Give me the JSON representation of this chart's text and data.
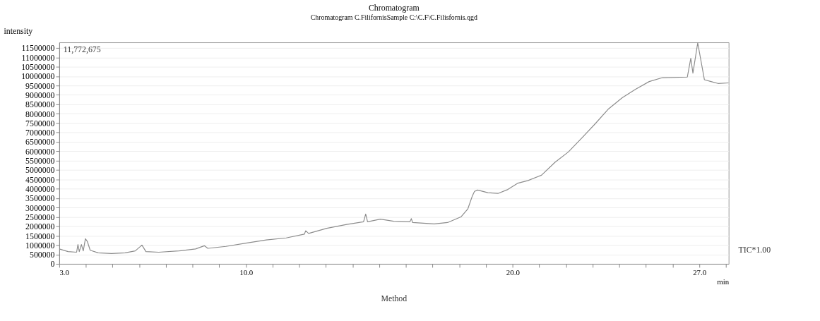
{
  "chart_data": {
    "type": "line",
    "title": "Chromatogram",
    "subtitle": "Chromatogram C.FilifornisSample  C:\\C.F\\C.Filisfornis.qgd",
    "xlabel": "min",
    "ylabel": "intensity",
    "annotations": [
      "11,772,675",
      "TIC*1.00",
      "Method"
    ],
    "xlim": [
      3.0,
      28.1
    ],
    "xticks": [
      {
        "value": 3,
        "label": "3.0"
      },
      {
        "value": 4,
        "label": null
      },
      {
        "value": 5,
        "label": null
      },
      {
        "value": 6,
        "label": null
      },
      {
        "value": 7,
        "label": null
      },
      {
        "value": 8,
        "label": null
      },
      {
        "value": 9,
        "label": null
      },
      {
        "value": 10,
        "label": "10.0"
      },
      {
        "value": 11,
        "label": null
      },
      {
        "value": 12,
        "label": null
      },
      {
        "value": 13,
        "label": null
      },
      {
        "value": 14,
        "label": null
      },
      {
        "value": 15,
        "label": null
      },
      {
        "value": 16,
        "label": null
      },
      {
        "value": 17,
        "label": null
      },
      {
        "value": 18,
        "label": null
      },
      {
        "value": 19,
        "label": null
      },
      {
        "value": 20,
        "label": "20.0"
      },
      {
        "value": 21,
        "label": null
      },
      {
        "value": 22,
        "label": null
      },
      {
        "value": 23,
        "label": null
      },
      {
        "value": 24,
        "label": null
      },
      {
        "value": 25,
        "label": null
      },
      {
        "value": 26,
        "label": null
      },
      {
        "value": 27,
        "label": "27.0"
      },
      {
        "value": 28,
        "label": null
      }
    ],
    "ylim": [
      0,
      11800000
    ],
    "yticks": [
      0,
      500000,
      1000000,
      1500000,
      2000000,
      2500000,
      3000000,
      3500000,
      4000000,
      4500000,
      5000000,
      5500000,
      6000000,
      6500000,
      7000000,
      7500000,
      8000000,
      8500000,
      9000000,
      9500000,
      10000000,
      10500000,
      11000000,
      11500000
    ],
    "grid": "y",
    "marker": "none",
    "line_style": "solid",
    "series": [
      {
        "color": "#8c8c8c",
        "x": [
          3.0,
          3.33,
          3.65,
          3.7,
          3.75,
          3.83,
          3.9,
          3.98,
          4.05,
          4.16,
          4.46,
          4.96,
          5.47,
          5.85,
          6.1,
          6.25,
          6.73,
          7.48,
          8.11,
          8.44,
          8.57,
          9.25,
          10.0,
          10.76,
          11.51,
          12.19,
          12.24,
          12.35,
          13.03,
          13.78,
          14.41,
          14.49,
          14.56,
          15.04,
          15.54,
          16.15,
          16.2,
          16.25,
          17.06,
          17.56,
          18.07,
          18.32,
          18.49,
          18.57,
          18.69,
          19.07,
          19.45,
          19.82,
          20.2,
          20.58,
          21.08,
          21.59,
          22.09,
          22.6,
          23.1,
          23.6,
          24.11,
          24.61,
          25.12,
          25.62,
          26.55,
          26.68,
          26.76,
          26.94,
          27.19,
          27.44,
          27.7,
          28.1
        ],
        "values": [
          792000,
          654000,
          620000,
          1030000,
          650000,
          1030000,
          690000,
          1340000,
          1200000,
          723000,
          585000,
          551000,
          585000,
          689000,
          998000,
          654000,
          620000,
          689000,
          792000,
          964000,
          826000,
          930000,
          1100000,
          1270000,
          1380000,
          1580000,
          1760000,
          1620000,
          1890000,
          2100000,
          2240000,
          2650000,
          2240000,
          2380000,
          2270000,
          2240000,
          2410000,
          2200000,
          2130000,
          2200000,
          2510000,
          2930000,
          3620000,
          3860000,
          3930000,
          3790000,
          3750000,
          3960000,
          4300000,
          4440000,
          4720000,
          5410000,
          5960000,
          6710000,
          7470000,
          8260000,
          8850000,
          9300000,
          9710000,
          9920000,
          9950000,
          10950000,
          10160000,
          11772675,
          9810000,
          9710000,
          9610000,
          9640000
        ]
      }
    ]
  }
}
